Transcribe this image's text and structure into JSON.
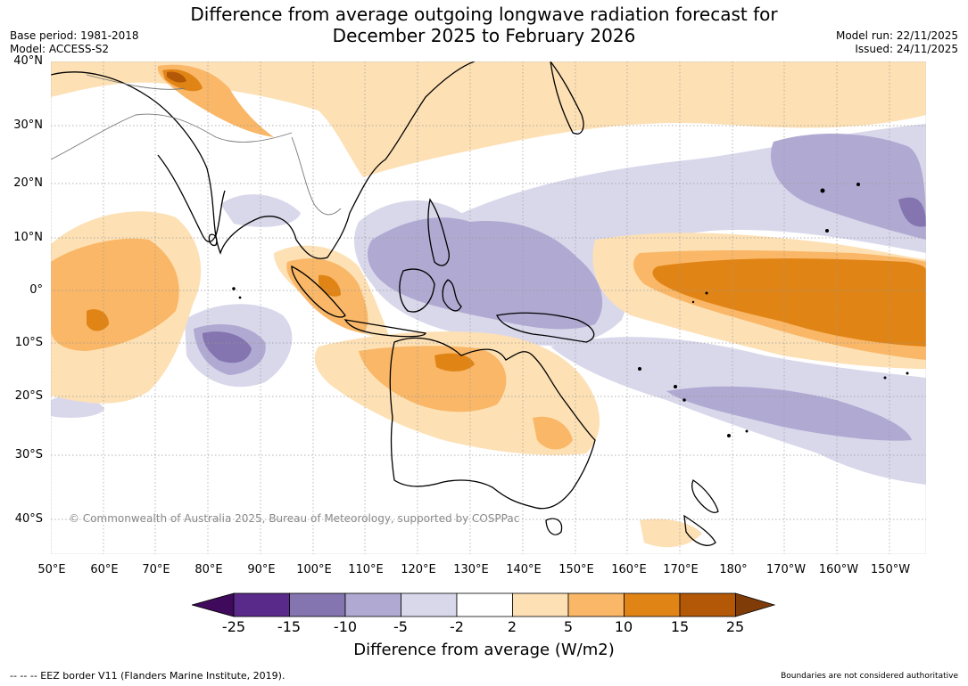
{
  "title": {
    "line1": "Difference from average outgoing longwave radiation forecast for",
    "line2": "December 2025 to February 2026"
  },
  "meta_left": {
    "base_period": "Base period: 1981-2018",
    "model": "Model: ACCESS-S2"
  },
  "meta_right": {
    "model_run": "Model run: 22/11/2025",
    "issued": "Issued: 24/11/2025"
  },
  "latitude_labels": [
    "40°N",
    "30°N",
    "20°N",
    "10°N",
    "0°",
    "10°S",
    "20°S",
    "30°S",
    "40°S"
  ],
  "longitude_labels": [
    "50°E",
    "60°E",
    "70°E",
    "80°E",
    "90°E",
    "100°E",
    "110°E",
    "120°E",
    "130°E",
    "140°E",
    "150°E",
    "160°E",
    "170°E",
    "180°",
    "170°W",
    "160°W",
    "150°W"
  ],
  "copyright": "© Commonwealth of Australia 2025, Bureau of Meteorology, supported by COSPPac",
  "colorbar": {
    "ticks": [
      "-25",
      "-15",
      "-10",
      "-5",
      "-2",
      "2",
      "5",
      "10",
      "15",
      "25"
    ],
    "colors": [
      "#3f0a5c",
      "#5a2a8a",
      "#8474b0",
      "#b0a9d2",
      "#d9d8eb",
      "#ffffff",
      "#fde0b4",
      "#f9b767",
      "#e08416",
      "#b35806",
      "#7f3b08"
    ],
    "label": "Difference from average (W/m2)"
  },
  "footer": {
    "eez": "--  --  -- EEZ border V11 (Flanders Marine Institute, 2019).",
    "boundaries": "Boundaries are not considered authoritative"
  },
  "map_colors": {
    "neg_light": "#d9d8eb",
    "neg_mid": "#b0a9d2",
    "neg_dark": "#8474b0",
    "pos_light": "#fde0b4",
    "pos_mid": "#f9b767",
    "pos_dark": "#e08416",
    "pos_darker": "#b35806"
  }
}
